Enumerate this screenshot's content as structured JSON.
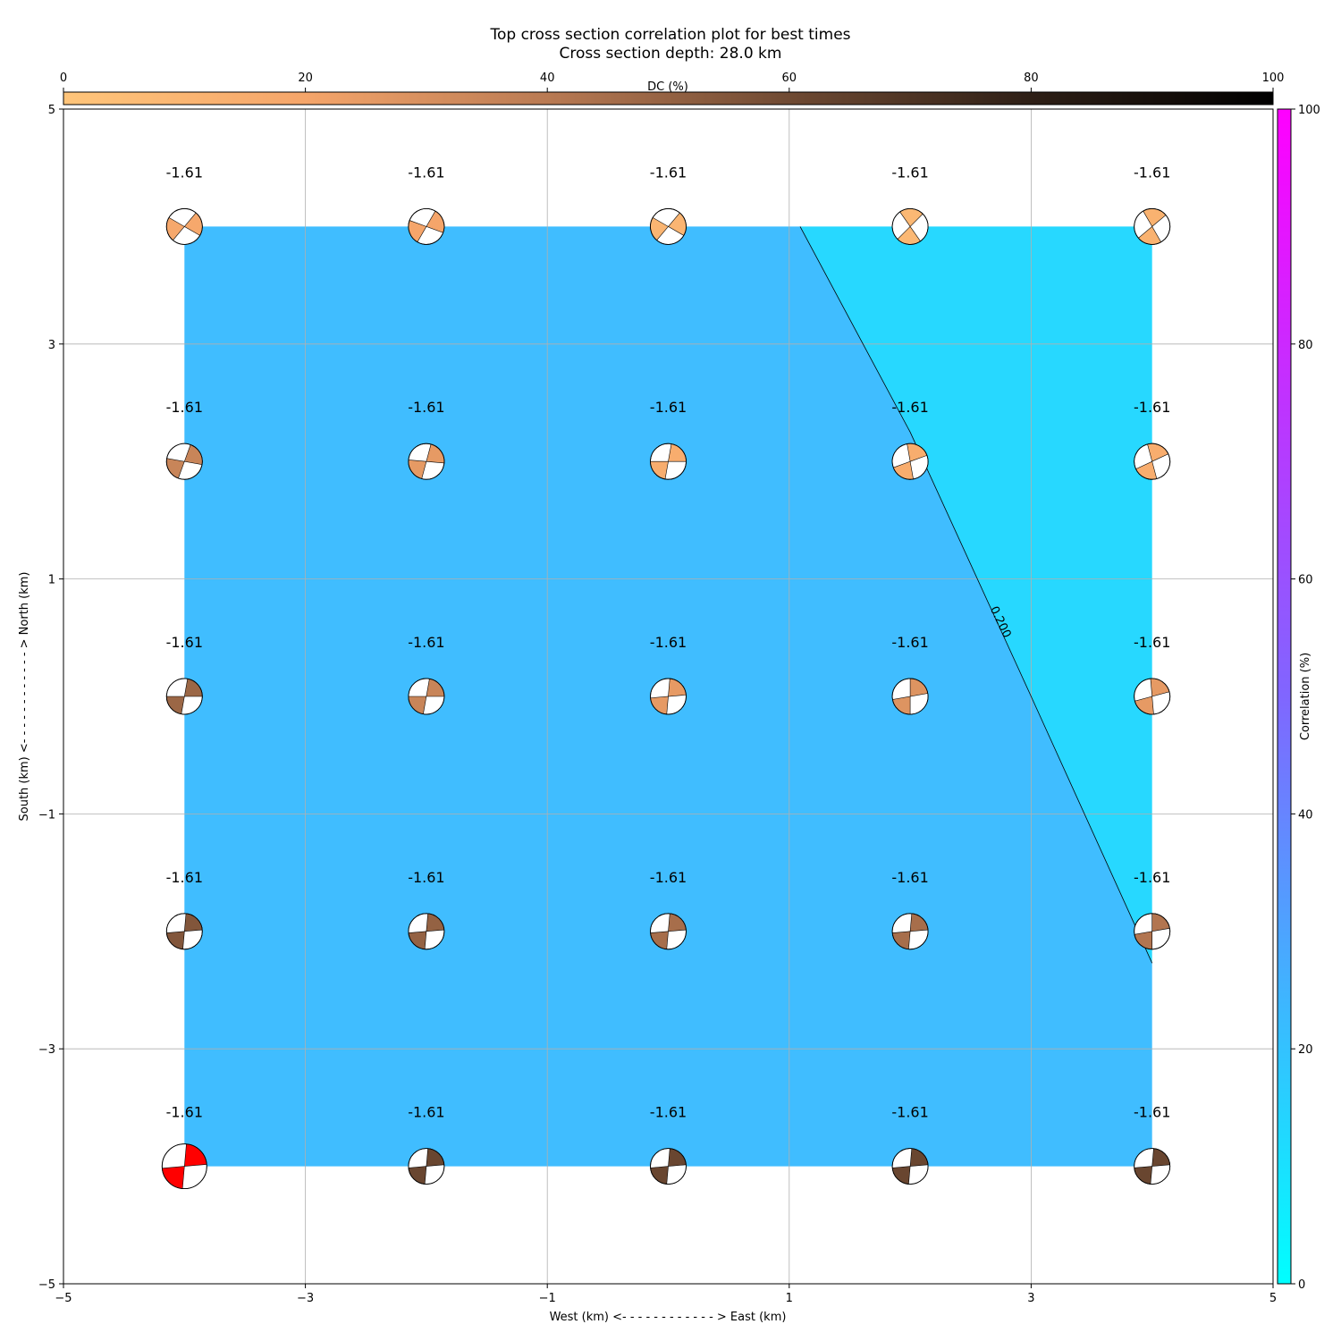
{
  "chart_data": {
    "type": "heatmap",
    "title": "Top cross section correlation plot for best times",
    "subtitle": "Cross section depth: 28.0 km",
    "xlabel": "West (km) <- - - - - - - - - - - - > East (km)",
    "ylabel": "South (km) <- - - - - - - - - - - - > North (km)",
    "xlim": [
      -5,
      5
    ],
    "ylim": [
      -5,
      5
    ],
    "xticks": [
      -5,
      -3,
      -1,
      1,
      3,
      5
    ],
    "yticks": [
      -5,
      -3,
      -1,
      1,
      3,
      5
    ],
    "grid": true,
    "dc_colorbar": {
      "label": "DC (%)",
      "range": [
        0,
        100
      ],
      "ticks": [
        0,
        20,
        40,
        60,
        80,
        100
      ],
      "colors": [
        "#ffc57a",
        "#f5a56a",
        "#b97a53",
        "#6f4a33",
        "#2e1f16",
        "#000000"
      ]
    },
    "correlation_colorbar": {
      "label": "Correlation (%)",
      "range": [
        0,
        100
      ],
      "ticks": [
        0,
        20,
        40,
        60,
        80,
        100
      ],
      "colors": [
        "#00ffff",
        "#40b3ff",
        "#8066ff",
        "#bf33ff",
        "#ff00ff"
      ]
    },
    "contour": {
      "label": "0.200",
      "points": [
        [
          1.09,
          4.0
        ],
        [
          2.0,
          2.25
        ],
        [
          3.0,
          0.0
        ],
        [
          4.0,
          -2.27
        ]
      ]
    },
    "regions": [
      {
        "name": "low",
        "color": "#40bdff"
      },
      {
        "name": "high",
        "color": "#27d8ff"
      }
    ],
    "grid_points": {
      "x": [
        -4,
        -2,
        0,
        2,
        4
      ],
      "y": [
        4,
        2,
        0,
        -2,
        -4
      ],
      "label": "-1.61",
      "rows": [
        [
          {
            "dc": 18,
            "rot": 80
          },
          {
            "dc": 20,
            "rot": 70
          },
          {
            "dc": 10,
            "rot": 80
          },
          {
            "dc": 8,
            "rot": 5
          },
          {
            "dc": 12,
            "rot": 10
          }
        ],
        [
          {
            "dc": 35,
            "rot": 60
          },
          {
            "dc": 25,
            "rot": 55
          },
          {
            "dc": 15,
            "rot": 50
          },
          {
            "dc": 15,
            "rot": 30
          },
          {
            "dc": 15,
            "rot": 25
          }
        ],
        [
          {
            "dc": 48,
            "rot": 50
          },
          {
            "dc": 35,
            "rot": 50
          },
          {
            "dc": 25,
            "rot": 45
          },
          {
            "dc": 28,
            "rot": 40
          },
          {
            "dc": 25,
            "rot": 35
          }
        ],
        [
          {
            "dc": 55,
            "rot": 45
          },
          {
            "dc": 50,
            "rot": 45
          },
          {
            "dc": 45,
            "rot": 45
          },
          {
            "dc": 45,
            "rot": 45
          },
          {
            "dc": 42,
            "rot": 40
          }
        ],
        [
          {
            "dc": 60,
            "rot": 45,
            "best": true,
            "color": "#ff0000"
          },
          {
            "dc": 62,
            "rot": 45
          },
          {
            "dc": 62,
            "rot": 45
          },
          {
            "dc": 62,
            "rot": 45
          },
          {
            "dc": 62,
            "rot": 45
          }
        ]
      ]
    }
  }
}
